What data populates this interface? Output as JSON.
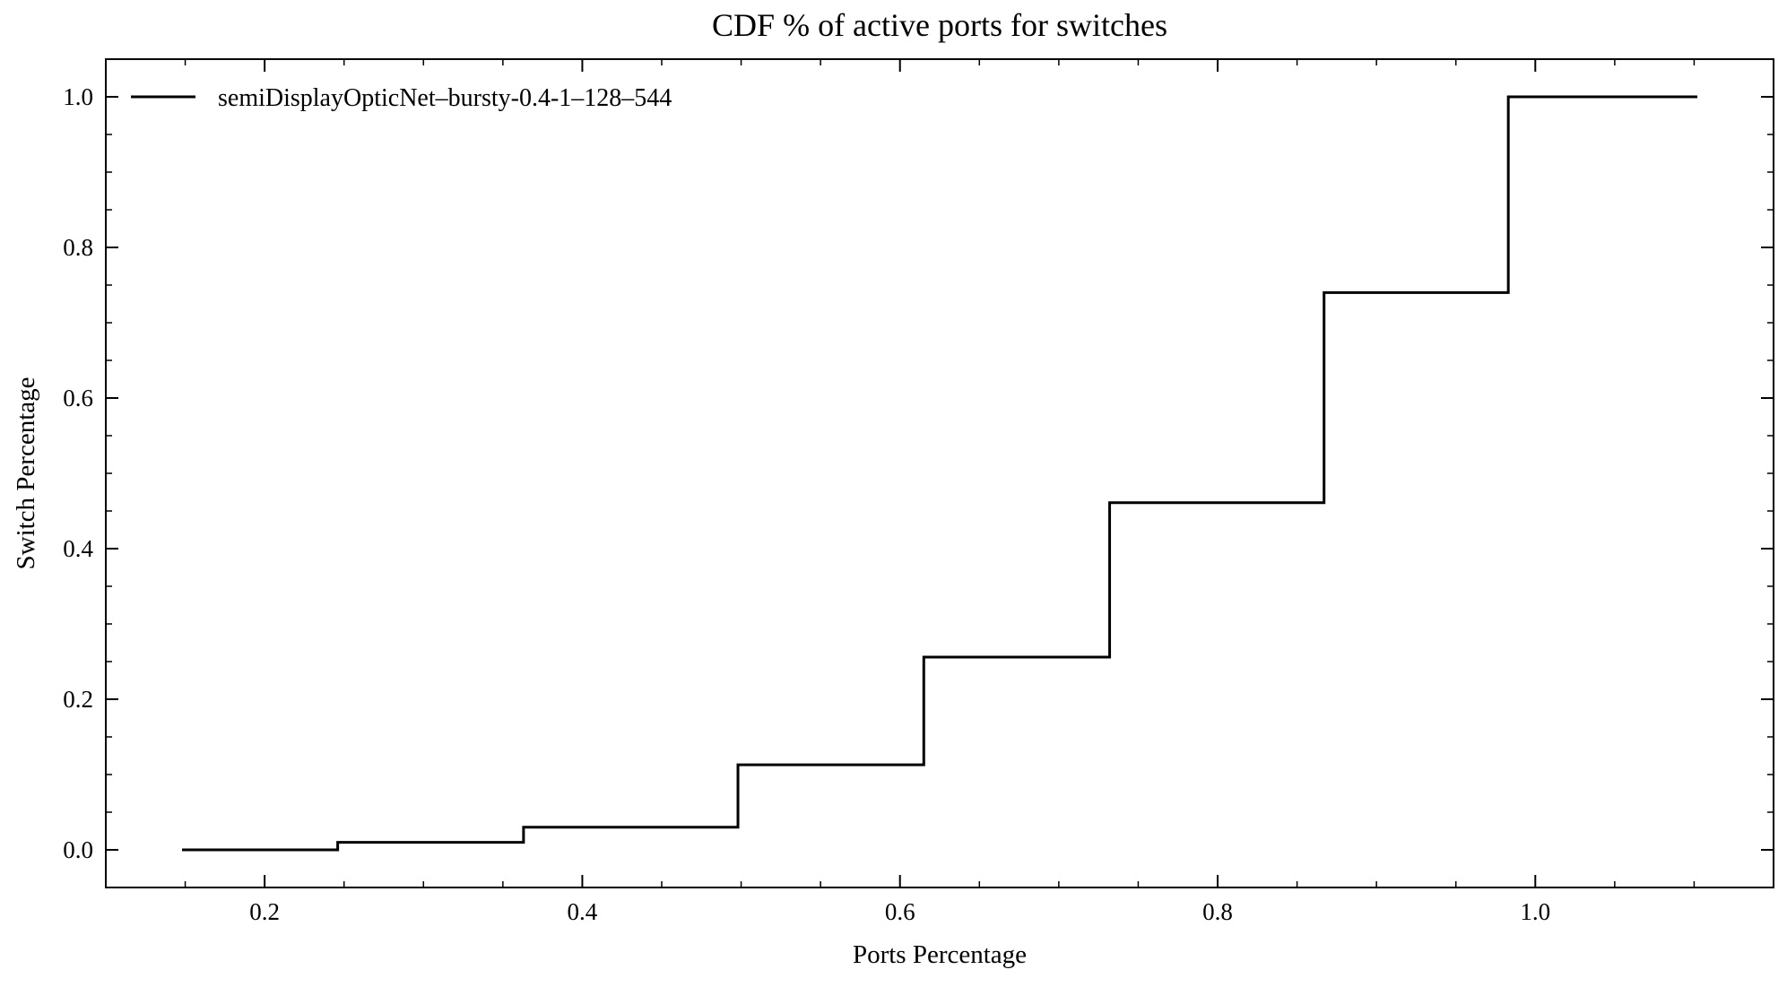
{
  "chart_data": {
    "type": "line",
    "step": "post",
    "title": "CDF % of active ports for switches",
    "xlabel": "Ports Percentage",
    "ylabel": "Switch Percentage",
    "xlim": [
      0.1,
      1.15
    ],
    "ylim": [
      -0.05,
      1.05
    ],
    "xticks": [
      0.2,
      0.4,
      0.6,
      0.8,
      1.0
    ],
    "xtick_labels": [
      "0.2",
      "0.4",
      "0.6",
      "0.8",
      "1.0"
    ],
    "yticks": [
      0.0,
      0.2,
      0.4,
      0.6,
      0.8,
      1.0
    ],
    "ytick_labels": [
      "0.0",
      "0.2",
      "0.4",
      "0.6",
      "0.8",
      "1.0"
    ],
    "grid": false,
    "legend_position": "top-left",
    "series": [
      {
        "name": "semiDisplayOpticNet–bursty-0.4-1–128–544",
        "color": "#000000",
        "x": [
          0.148,
          0.246,
          0.363,
          0.498,
          0.615,
          0.732,
          0.867,
          0.983,
          1.102
        ],
        "y": [
          0.0,
          0.01,
          0.03,
          0.113,
          0.256,
          0.461,
          0.74,
          1.0,
          1.0
        ]
      }
    ]
  }
}
